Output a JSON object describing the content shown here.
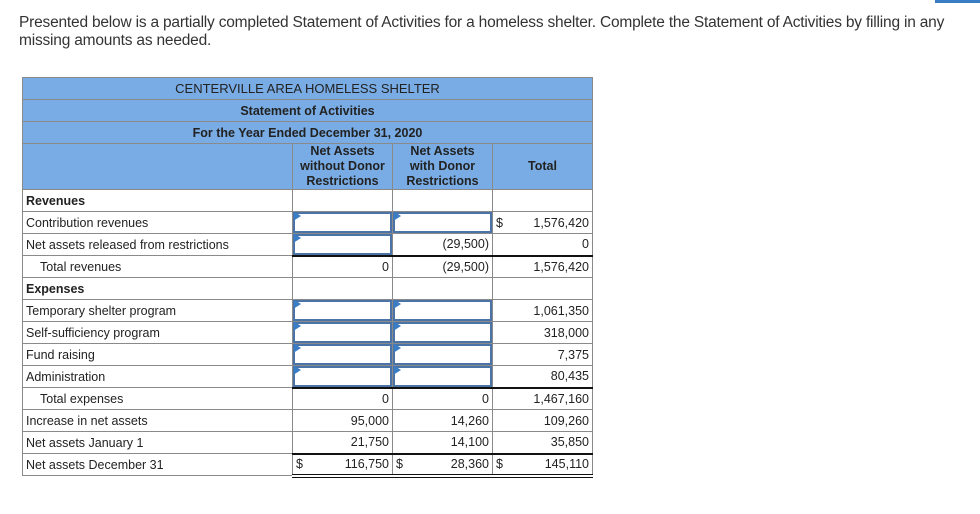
{
  "prompt": "Presented below is a partially completed Statement of Activities for a homeless shelter. Complete the Statement of Activities by filling in any missing amounts as needed.",
  "statement": {
    "org_name": "CENTERVILLE AREA HOMELESS SHELTER",
    "title": "Statement of Activities",
    "period": "For the Year Ended December 31, 2020",
    "columns": {
      "without_restrictions": "Net Assets without Donor Restrictions",
      "with_restrictions": "Net Assets with Donor Restrictions",
      "total": "Total"
    },
    "column_lines": {
      "without": [
        "Net Assets",
        "without Donor",
        "Restrictions"
      ],
      "with": [
        "Net Assets",
        "with Donor",
        "Restrictions"
      ]
    },
    "currency_symbol": "$",
    "sections": {
      "revenues": "Revenues",
      "expenses": "Expenses"
    },
    "rows": {
      "contribution_revenues": {
        "label": "Contribution revenues",
        "without": "",
        "with": "",
        "total": "1,576,420"
      },
      "released": {
        "label": "Net assets released from restrictions",
        "without": "",
        "with": "(29,500)",
        "total": "0"
      },
      "total_revenues": {
        "label": "Total revenues",
        "without": "0",
        "with": "(29,500)",
        "total": "1,576,420"
      },
      "temp_shelter": {
        "label": "Temporary shelter program",
        "without": "",
        "with": "",
        "total": "1,061,350"
      },
      "self_sufficiency": {
        "label": "Self-sufficiency program",
        "without": "",
        "with": "",
        "total": "318,000"
      },
      "fund_raising": {
        "label": "Fund raising",
        "without": "",
        "with": "",
        "total": "7,375"
      },
      "administration": {
        "label": "Administration",
        "without": "",
        "with": "",
        "total": "80,435"
      },
      "total_expenses": {
        "label": "Total expenses",
        "without": "0",
        "with": "0",
        "total": "1,467,160"
      },
      "increase": {
        "label": "Increase in net assets",
        "without": "95,000",
        "with": "14,260",
        "total": "109,260"
      },
      "jan1": {
        "label": "Net assets January 1",
        "without": "21,750",
        "with": "14,100",
        "total": "35,850"
      },
      "dec31": {
        "label": "Net assets December 31",
        "without": "116,750",
        "with": "28,360",
        "total": "145,110"
      }
    }
  },
  "colors": {
    "header_bg": "#79ace4",
    "input_border": "#4a73a8",
    "input_flag": "#3b7dc4",
    "accent": "#3b7dc4"
  }
}
